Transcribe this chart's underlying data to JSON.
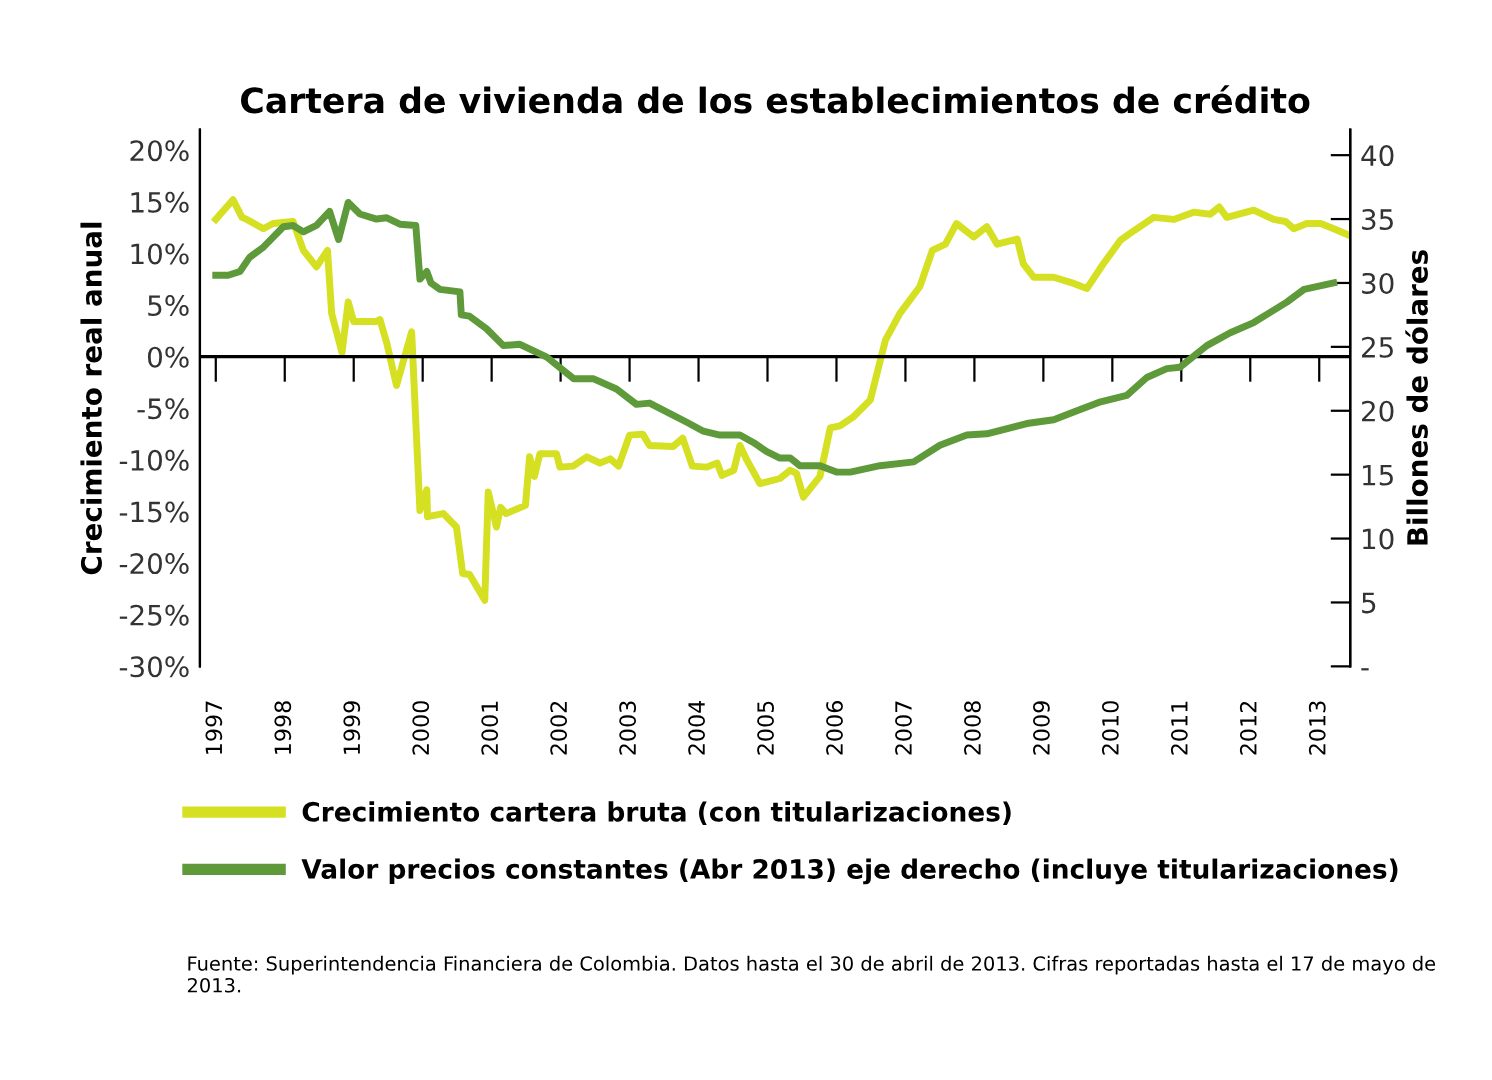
{
  "chart_data": {
    "type": "line",
    "title": "Cartera de vivienda de los establecimientos de crédito",
    "ylabel": "Crecimiento real anual",
    "y2label": "Billones de dólares",
    "annotations": [
      "Fuente: Superintendencia Financiera de Colombia. Datos hasta el 30 de abril de 2013. Cifras reportadas hasta el 17 de mayo de 2013."
    ],
    "series": [
      {
        "name": "Crecimiento cartera bruta (con titularizaciones)",
        "color": "#d4e021",
        "x": [
          1997.0,
          1997.25,
          1997.38,
          1997.45,
          1997.69,
          1997.83,
          1998.12,
          1998.27,
          1998.46,
          1998.62,
          1998.68,
          1998.83,
          1998.92,
          1999.0,
          1999.33,
          1999.38,
          1999.48,
          1999.62,
          1999.84,
          1999.96,
          2000.06,
          2000.07,
          2000.3,
          2000.49,
          2000.58,
          2000.68,
          2000.9,
          2000.95,
          2001.07,
          2001.13,
          2001.21,
          2001.49,
          2001.55,
          2001.62,
          2001.7,
          2001.94,
          2001.99,
          2002.18,
          2002.38,
          2002.57,
          2002.72,
          2002.84,
          2003.0,
          2003.19,
          2003.29,
          2003.63,
          2003.77,
          2003.91,
          2004.12,
          2004.27,
          2004.34,
          2004.51,
          2004.6,
          2004.7,
          2004.89,
          2005.18,
          2005.33,
          2005.42,
          2005.52,
          2005.76,
          2005.91,
          2006.05,
          2006.25,
          2006.49,
          2006.71,
          2006.92,
          2007.21,
          2007.39,
          2007.58,
          2007.74,
          2007.99,
          2008.18,
          2008.33,
          2008.62,
          2008.71,
          2008.86,
          2009.15,
          2009.44,
          2009.63,
          2009.87,
          2010.12,
          2010.31,
          2010.6,
          2010.89,
          2011.18,
          2011.42,
          2011.55,
          2011.66,
          2012.05,
          2012.34,
          2012.51,
          2012.63,
          2012.82,
          2013.02,
          2013.21,
          2013.42
        ],
        "values": [
          13.3,
          15.2,
          13.5,
          13.3,
          12.4,
          12.9,
          13.1,
          10.3,
          8.7,
          10.3,
          4.2,
          0.4,
          5.3,
          3.4,
          3.4,
          3.6,
          1.3,
          -2.8,
          2.4,
          -14.9,
          -12.9,
          -15.5,
          -15.2,
          -16.5,
          -21.0,
          -21.1,
          -23.6,
          -13.1,
          -16.5,
          -14.6,
          -15.2,
          -14.4,
          -9.7,
          -11.6,
          -9.4,
          -9.4,
          -10.7,
          -10.6,
          -9.7,
          -10.3,
          -9.9,
          -10.6,
          -7.6,
          -7.5,
          -8.6,
          -8.7,
          -7.9,
          -10.6,
          -10.7,
          -10.3,
          -11.5,
          -11.0,
          -8.6,
          -10.0,
          -12.3,
          -11.8,
          -11.0,
          -11.3,
          -13.6,
          -11.6,
          -6.9,
          -6.7,
          -5.8,
          -4.2,
          1.6,
          4.2,
          6.8,
          10.3,
          10.9,
          12.9,
          11.6,
          12.6,
          10.9,
          11.4,
          9.0,
          7.7,
          7.7,
          7.1,
          6.6,
          9.0,
          11.3,
          12.2,
          13.5,
          13.3,
          14.0,
          13.8,
          14.5,
          13.5,
          14.2,
          13.3,
          13.1,
          12.4,
          12.9,
          12.9,
          12.4,
          11.8
        ]
      },
      {
        "name": "Valor precios constantes (Abr 2013) eje derecho (incluye titularizaciones)",
        "color": "#5e9a3a",
        "axis": "y2",
        "x": [
          1997.0,
          1997.18,
          1997.35,
          1997.49,
          1997.69,
          1997.98,
          1998.12,
          1998.27,
          1998.46,
          1998.65,
          1998.78,
          1998.92,
          1999.09,
          1999.33,
          1999.48,
          1999.67,
          1999.9,
          1999.96,
          2000.06,
          2000.12,
          2000.25,
          2000.54,
          2000.56,
          2000.68,
          2000.93,
          2001.17,
          2001.41,
          2001.8,
          2002.19,
          2002.48,
          2002.81,
          2003.1,
          2003.29,
          2003.83,
          2004.07,
          2004.31,
          2004.6,
          2004.8,
          2004.99,
          2005.18,
          2005.33,
          2005.47,
          2005.76,
          2006.0,
          2006.2,
          2006.63,
          2007.12,
          2007.5,
          2007.89,
          2008.18,
          2008.76,
          2009.15,
          2009.44,
          2009.83,
          2010.21,
          2010.5,
          2010.79,
          2010.98,
          2011.37,
          2011.71,
          2012.05,
          2012.53,
          2012.78,
          2013.21
        ],
        "values": [
          30.6,
          30.6,
          30.9,
          32.0,
          32.8,
          34.4,
          34.5,
          34.0,
          34.5,
          35.6,
          33.4,
          36.3,
          35.4,
          35.0,
          35.1,
          34.6,
          34.5,
          30.3,
          30.9,
          30.0,
          29.5,
          29.3,
          27.5,
          27.4,
          26.4,
          25.1,
          25.2,
          24.2,
          22.5,
          22.5,
          21.7,
          20.5,
          20.6,
          19.1,
          18.4,
          18.1,
          18.1,
          17.5,
          16.8,
          16.3,
          16.3,
          15.7,
          15.7,
          15.2,
          15.2,
          15.7,
          16.0,
          17.3,
          18.1,
          18.2,
          19.0,
          19.3,
          19.9,
          20.7,
          21.2,
          22.6,
          23.3,
          23.4,
          25.1,
          26.1,
          26.9,
          28.5,
          29.5,
          30.0
        ]
      }
    ],
    "xlim": [
      1996.77,
      2013.45
    ],
    "xticks": [
      1997,
      1998,
      1999,
      2000,
      2001,
      2002,
      2003,
      2004,
      2005,
      2006,
      2007,
      2008,
      2009,
      2010,
      2011,
      2012,
      2013
    ],
    "ylim": [
      -30,
      22
    ],
    "yticks": [
      {
        "value": -30,
        "label": "-30%"
      },
      {
        "value": -25,
        "label": "-25%"
      },
      {
        "value": -20,
        "label": "-20%"
      },
      {
        "value": -15,
        "label": "-15%"
      },
      {
        "value": -10,
        "label": "-10%"
      },
      {
        "value": -5,
        "label": "-5%"
      },
      {
        "value": 0,
        "label": "0%"
      },
      {
        "value": 5,
        "label": "5%"
      },
      {
        "value": 10,
        "label": "10%"
      },
      {
        "value": 15,
        "label": "15%"
      },
      {
        "value": 20,
        "label": "20%"
      }
    ],
    "y2lim": [
      0,
      42
    ],
    "y2ticks": [
      {
        "value": 0,
        "label": "-"
      },
      5,
      10,
      15,
      20,
      25,
      30,
      35,
      40
    ],
    "ref_lines": [
      {
        "axis": "y",
        "value": 0,
        "color": "#000000"
      }
    ],
    "legend": "bottom",
    "grid": false,
    "marker": "none",
    "line_style": "solid"
  }
}
